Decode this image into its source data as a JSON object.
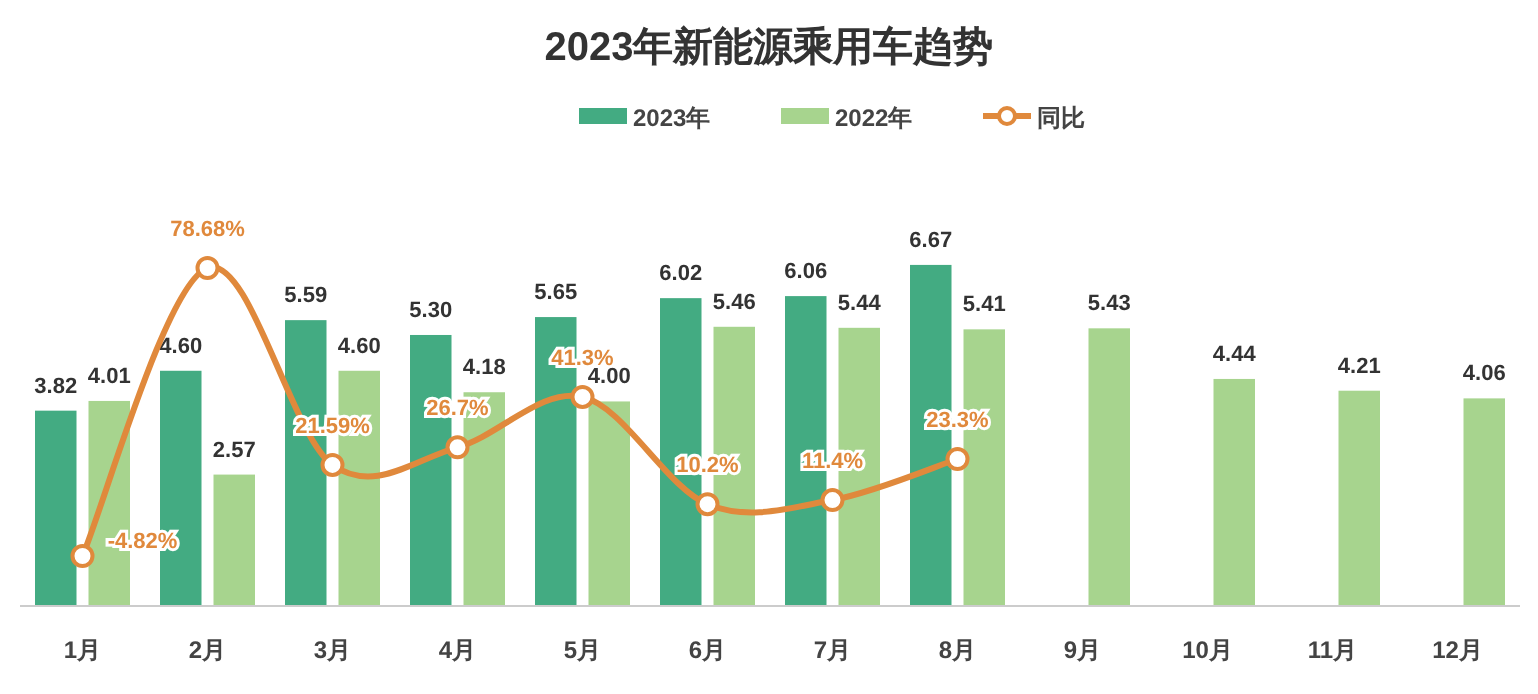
{
  "chart_data": {
    "type": "bar",
    "title": "2023年新能源乘用车趋势",
    "categories": [
      "1月",
      "2月",
      "3月",
      "4月",
      "5月",
      "6月",
      "7月",
      "8月",
      "9月",
      "10月",
      "11月",
      "12月"
    ],
    "series": [
      {
        "name": "2023年",
        "color": "#43ab82",
        "values": [
          3.82,
          4.6,
          5.59,
          5.3,
          5.65,
          6.02,
          6.06,
          6.67,
          null,
          null,
          null,
          null
        ],
        "value_labels": [
          "3.82",
          "4.60",
          "5.59",
          "5.30",
          "5.65",
          "6.02",
          "6.06",
          "6.67",
          null,
          null,
          null,
          null
        ]
      },
      {
        "name": "2022年",
        "color": "#a7d48e",
        "values": [
          4.01,
          2.57,
          4.6,
          4.18,
          4.0,
          5.46,
          5.44,
          5.41,
          5.43,
          4.44,
          4.21,
          4.06
        ],
        "value_labels": [
          "4.01",
          "2.57",
          "4.60",
          "4.18",
          "4.00",
          "5.46",
          "5.44",
          "5.41",
          "5.43",
          "4.44",
          "4.21",
          "4.06"
        ]
      },
      {
        "name": "同比",
        "type": "line",
        "axis": "y2",
        "color": "#e0893c",
        "marker": "circle",
        "values": [
          -4.82,
          78.68,
          21.59,
          26.7,
          41.3,
          10.2,
          11.4,
          23.3,
          null,
          null,
          null,
          null
        ],
        "value_labels": [
          "-4.82%",
          "78.68%",
          "21.59%",
          "26.7%",
          "41.3%",
          "10.2%",
          "11.4%",
          "23.3%",
          null,
          null,
          null,
          null
        ]
      }
    ],
    "tick_labels": "x",
    "legend": "top",
    "grid": false
  }
}
